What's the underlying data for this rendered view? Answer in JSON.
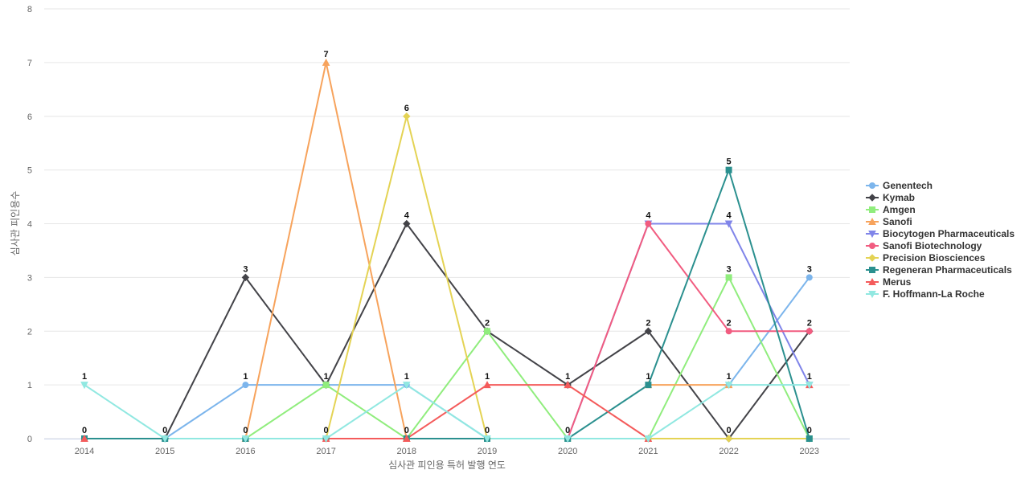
{
  "chart_data": {
    "type": "line",
    "xlabel": "심사관 피인용 특허 발행 연도",
    "ylabel": "심사관 피인용수",
    "x": [
      "2014",
      "2015",
      "2016",
      "2017",
      "2018",
      "2019",
      "2020",
      "2021",
      "2022",
      "2023"
    ],
    "ylim": [
      0,
      8
    ],
    "yticks": [
      0,
      1,
      2,
      3,
      4,
      5,
      6,
      7,
      8
    ],
    "grid": true,
    "legend_position": "right",
    "series": [
      {
        "name": "Genentech",
        "color": "#7cb5ec",
        "marker": "circle",
        "values": [
          null,
          0,
          1,
          1,
          1,
          0,
          null,
          null,
          1,
          3
        ],
        "labels": [
          null,
          null,
          "1",
          null,
          null,
          null,
          null,
          null,
          null,
          "3"
        ]
      },
      {
        "name": "Kymab",
        "color": "#434348",
        "marker": "diamond",
        "values": [
          null,
          0,
          3,
          1,
          4,
          2,
          1,
          2,
          0,
          2
        ],
        "labels": [
          null,
          null,
          "3",
          null,
          "4",
          null,
          "1",
          "2",
          "0",
          null
        ]
      },
      {
        "name": "Amgen",
        "color": "#90ed7d",
        "marker": "square",
        "values": [
          null,
          null,
          0,
          1,
          0,
          2,
          0,
          0,
          3,
          0
        ],
        "labels": [
          null,
          null,
          null,
          "1",
          null,
          "2",
          null,
          null,
          "3",
          null
        ]
      },
      {
        "name": "Sanofi",
        "color": "#f7a35c",
        "marker": "triangle",
        "values": [
          null,
          null,
          0,
          7,
          0,
          null,
          null,
          1,
          1,
          null
        ],
        "labels": [
          null,
          null,
          null,
          "7",
          null,
          null,
          null,
          null,
          null,
          null
        ]
      },
      {
        "name": "Biocytogen Pharmaceuticals",
        "color": "#8085e9",
        "marker": "triangle-down",
        "values": [
          null,
          null,
          null,
          null,
          null,
          null,
          0,
          4,
          4,
          1
        ],
        "labels": [
          null,
          null,
          null,
          null,
          null,
          null,
          null,
          "4",
          "4",
          null
        ]
      },
      {
        "name": "Sanofi Biotechnology",
        "color": "#f15c80",
        "marker": "circle",
        "values": [
          null,
          null,
          null,
          null,
          null,
          null,
          0,
          4,
          2,
          2
        ],
        "labels": [
          null,
          null,
          null,
          null,
          null,
          null,
          null,
          null,
          "2",
          "2"
        ]
      },
      {
        "name": "Precision Biosciences",
        "color": "#e4d354",
        "marker": "diamond",
        "values": [
          null,
          null,
          null,
          0,
          6,
          0,
          null,
          0,
          0,
          0
        ],
        "labels": [
          null,
          null,
          null,
          null,
          "6",
          null,
          null,
          null,
          null,
          null
        ]
      },
      {
        "name": "Regeneran Pharmaceuticals",
        "color": "#2b908f",
        "marker": "square",
        "values": [
          0,
          0,
          0,
          0,
          0,
          0,
          0,
          1,
          5,
          0
        ],
        "labels": [
          "0",
          "0",
          "0",
          "0",
          "0",
          "0",
          "0",
          "1",
          "5",
          "0"
        ]
      },
      {
        "name": "Merus",
        "color": "#f45b5b",
        "marker": "triangle",
        "values": [
          0,
          null,
          null,
          0,
          0,
          1,
          1,
          0,
          null,
          1
        ],
        "labels": [
          null,
          null,
          null,
          null,
          null,
          "1",
          null,
          null,
          null,
          "1"
        ]
      },
      {
        "name": "F. Hoffmann-La Roche",
        "color": "#91e8e1",
        "marker": "triangle-down",
        "values": [
          1,
          0,
          0,
          0,
          1,
          0,
          0,
          0,
          1,
          1
        ],
        "labels": [
          "1",
          null,
          null,
          null,
          "1",
          null,
          null,
          null,
          "1",
          null
        ]
      }
    ]
  }
}
